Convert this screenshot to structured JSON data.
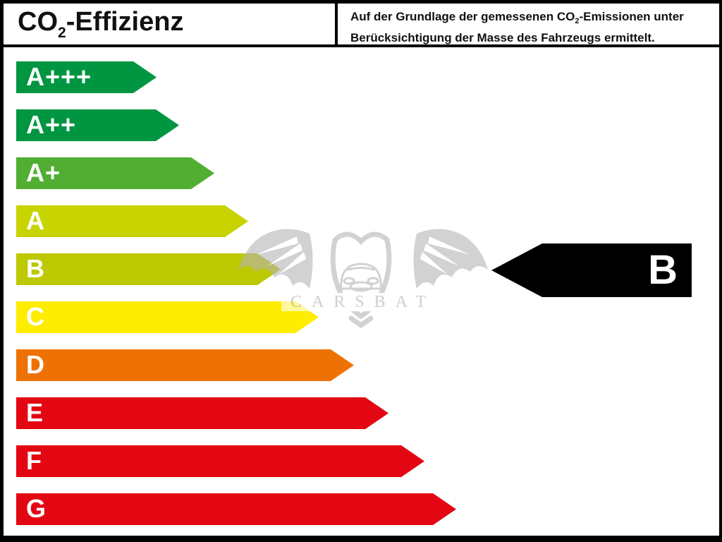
{
  "header": {
    "title": {
      "prefix": "CO",
      "sub": "2",
      "suffix": "-Effizienz"
    },
    "note": {
      "line1_prefix": "Auf der Grundlage der gemessenen CO",
      "line1_sub": "2",
      "line1_suffix": "-Emissionen unter",
      "line2": "Berücksichtigung der Masse des Fahrzeugs ermittelt."
    }
  },
  "chart_data": {
    "type": "bar",
    "orientation": "horizontal-arrow-scale",
    "title": "CO2-Effizienz",
    "categories": [
      "A+++",
      "A++",
      "A+",
      "A",
      "B",
      "C",
      "D",
      "E",
      "F",
      "G"
    ],
    "series": [
      {
        "name": "arrow_length_px",
        "values": [
          199,
          231,
          281,
          329,
          375,
          429,
          479,
          528,
          579,
          624
        ]
      }
    ],
    "colors": [
      "#009641",
      "#009641",
      "#52ae32",
      "#c8d400",
      "#bdc900",
      "#ffed00",
      "#ee7203",
      "#e30613",
      "#e30613",
      "#e30613"
    ],
    "legend_position": "none",
    "grid": false,
    "annotation": {
      "vehicle_class": "B",
      "arrow_color": "#000000",
      "arrow_points": "left",
      "aligned_with_category": "B"
    }
  },
  "watermark": {
    "text": "CARSBAT"
  }
}
